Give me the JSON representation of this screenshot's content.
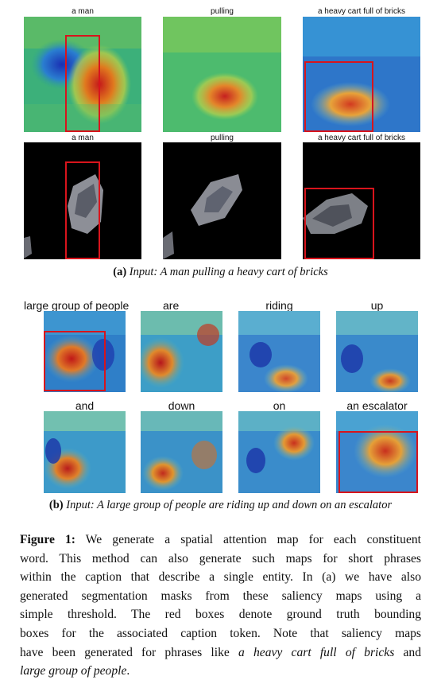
{
  "section_a": {
    "labels_row1": [
      "a man",
      "pulling",
      "a heavy cart full of bricks"
    ],
    "labels_row2": [
      "a man",
      "pulling",
      "a heavy cart full of bricks"
    ],
    "caption_tag": "(a)",
    "caption_text": "Input: A man pulling a heavy cart of bricks"
  },
  "section_b": {
    "labels_row1": [
      "large group of people",
      "are",
      "riding",
      "up"
    ],
    "labels_row2": [
      "and",
      "down",
      "on",
      "an escalator"
    ],
    "caption_tag": "(b)",
    "caption_text": "Input: A large group of people are riding up and down on an escalator"
  },
  "figure": {
    "label": "Figure 1:",
    "lines": [
      " We generate a spatial attention map for each constituent",
      "word. This method can also generate such maps for short phrases",
      "within the caption that describe a single entity. In (a) we have also",
      "generated segmentation masks from these saliency maps using a",
      "simple threshold.  The red boxes denote ground truth bounding",
      "boxes for the associated caption token.  Note that saliency maps",
      "have been generated for phrases like "
    ],
    "italic_1": "a heavy cart full of bricks",
    "tail_1": " and",
    "italic_2": "large group of people",
    "tail_2": "."
  }
}
